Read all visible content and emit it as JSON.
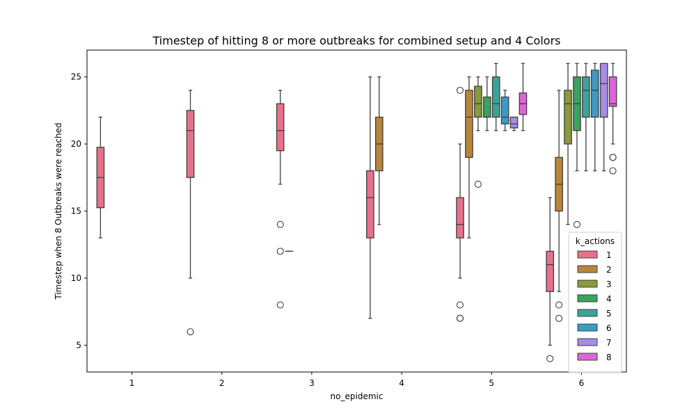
{
  "chart_data": {
    "type": "boxplot",
    "title": "Timestep of hitting 8 or more outbreaks for combined setup and 4 Colors",
    "xlabel": "no_epidemic",
    "ylabel": "Timestep when 8 Outbreaks were reached",
    "categories": [
      "1",
      "2",
      "3",
      "4",
      "5",
      "6"
    ],
    "ylim": [
      3,
      27
    ],
    "yticks": [
      5,
      10,
      15,
      20,
      25
    ],
    "grid": false,
    "legend": {
      "title": "k_actions",
      "position": "lower right"
    },
    "series": [
      {
        "name": "1",
        "color": "#e8718a",
        "boxes": [
          {
            "category": "1",
            "whislo": 13,
            "q1": 15.25,
            "med": 17.5,
            "q3": 19.75,
            "whishi": 22,
            "fliers": []
          },
          {
            "category": "2",
            "whislo": 10,
            "q1": 17.5,
            "med": 21,
            "q3": 22.5,
            "whishi": 24,
            "fliers": [
              6
            ]
          },
          {
            "category": "3",
            "whislo": 17,
            "q1": 19.5,
            "med": 21,
            "q3": 23,
            "whishi": 24,
            "fliers": [
              8,
              12,
              14
            ]
          },
          {
            "category": "4",
            "whislo": 7,
            "q1": 13,
            "med": 16,
            "q3": 18,
            "whishi": 25,
            "fliers": []
          },
          {
            "category": "5",
            "whislo": 10,
            "q1": 13,
            "med": 14,
            "q3": 16,
            "whishi": 20,
            "fliers": [
              7,
              7,
              8,
              24
            ]
          },
          {
            "category": "6",
            "whislo": 5,
            "q1": 9,
            "med": 11,
            "q3": 12,
            "whishi": 16,
            "fliers": [
              4
            ]
          }
        ]
      },
      {
        "name": "2",
        "color": "#b8863a",
        "boxes": [
          {
            "category": "3",
            "whislo": 12,
            "q1": 12,
            "med": 12,
            "q3": 12,
            "whishi": 12,
            "fliers": []
          },
          {
            "category": "4",
            "whislo": 14,
            "q1": 18,
            "med": 20,
            "q3": 22,
            "whishi": 25,
            "fliers": []
          },
          {
            "category": "5",
            "whislo": 13,
            "q1": 19,
            "med": 22,
            "q3": 24,
            "whishi": 25,
            "fliers": []
          },
          {
            "category": "6",
            "whislo": 9,
            "q1": 15,
            "med": 17,
            "q3": 19,
            "whishi": 24,
            "fliers": [
              7,
              8
            ]
          }
        ]
      },
      {
        "name": "3",
        "color": "#8a9a3c",
        "boxes": [
          {
            "category": "5",
            "whislo": 21,
            "q1": 22,
            "med": 23,
            "q3": 24.3,
            "whishi": 25,
            "fliers": [
              17
            ]
          },
          {
            "category": "6",
            "whislo": 14,
            "q1": 20,
            "med": 23,
            "q3": 24,
            "whishi": 26,
            "fliers": []
          }
        ]
      },
      {
        "name": "4",
        "color": "#3aa35e",
        "boxes": [
          {
            "category": "5",
            "whislo": 21,
            "q1": 22,
            "med": 22,
            "q3": 23.5,
            "whishi": 25,
            "fliers": []
          },
          {
            "category": "6",
            "whislo": 18,
            "q1": 21,
            "med": 23,
            "q3": 25,
            "whishi": 26,
            "fliers": [
              14
            ]
          }
        ]
      },
      {
        "name": "5",
        "color": "#3da399",
        "boxes": [
          {
            "category": "5",
            "whislo": 21,
            "q1": 22,
            "med": 23,
            "q3": 25,
            "whishi": 26,
            "fliers": []
          },
          {
            "category": "6",
            "whislo": 18,
            "q1": 22,
            "med": 24,
            "q3": 25,
            "whishi": 26,
            "fliers": []
          }
        ]
      },
      {
        "name": "6",
        "color": "#3c9bc4",
        "boxes": [
          {
            "category": "5",
            "whislo": 21,
            "q1": 21.5,
            "med": 22,
            "q3": 23.5,
            "whishi": 24,
            "fliers": []
          },
          {
            "category": "6",
            "whislo": 18,
            "q1": 22,
            "med": 24,
            "q3": 25.5,
            "whishi": 26,
            "fliers": []
          }
        ]
      },
      {
        "name": "7",
        "color": "#a78be6",
        "boxes": [
          {
            "category": "5",
            "whislo": 21,
            "q1": 21.2,
            "med": 21.5,
            "q3": 22,
            "whishi": 22,
            "fliers": []
          },
          {
            "category": "6",
            "whislo": 18,
            "q1": 22,
            "med": 24.5,
            "q3": 26,
            "whishi": 26,
            "fliers": []
          }
        ]
      },
      {
        "name": "8",
        "color": "#df65d6",
        "boxes": [
          {
            "category": "5",
            "whislo": 21,
            "q1": 22.2,
            "med": 23,
            "q3": 23.8,
            "whishi": 26,
            "fliers": []
          },
          {
            "category": "6",
            "whislo": 20,
            "q1": 22.8,
            "med": 23,
            "q3": 25,
            "whishi": 26,
            "fliers": [
              18,
              19,
              19
            ]
          }
        ]
      }
    ]
  }
}
